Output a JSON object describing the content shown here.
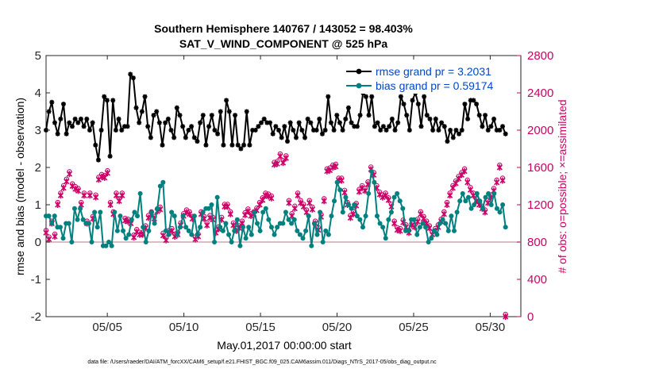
{
  "chart_data": {
    "type": "line",
    "title": "Southern Hemisphere 140767 / 143052 = 98.403%",
    "subtitle": "SAT_V_WIND_COMPONENT @ 525 hPa",
    "xlabel": "May.01,2017 00:00:00 start",
    "ylabel_left": "rmse and bias (model - observation)",
    "ylabel_right": "# of obs: o=possible; ×=assimilated",
    "footnote": "data file: /Users/raeder/DAI/ATM_forcXX/CAM6_setup/f.e21.FHIST_BGC.f09_025.CAM6assim.011/Diags_NTrS_2017-05/obs_diag_output.nc",
    "x_range": [
      1,
      32
    ],
    "ylim_left": [
      -2,
      5
    ],
    "ylim_right": [
      0,
      2800
    ],
    "x_ticks": [
      {
        "value": 5,
        "label": "05/05"
      },
      {
        "value": 10,
        "label": "05/10"
      },
      {
        "value": 15,
        "label": "05/15"
      },
      {
        "value": 20,
        "label": "05/20"
      },
      {
        "value": 25,
        "label": "05/25"
      },
      {
        "value": 30,
        "label": "05/30"
      }
    ],
    "y_left_ticks": [
      {
        "value": -2,
        "label": "-2"
      },
      {
        "value": -1,
        "label": "-1"
      },
      {
        "value": 0,
        "label": "0"
      },
      {
        "value": 1,
        "label": "1"
      },
      {
        "value": 2,
        "label": "2"
      },
      {
        "value": 3,
        "label": "3"
      },
      {
        "value": 4,
        "label": "4"
      },
      {
        "value": 5,
        "label": "5"
      }
    ],
    "y_right_ticks": [
      {
        "value": 0,
        "label": "0"
      },
      {
        "value": 400,
        "label": "400"
      },
      {
        "value": 800,
        "label": "800"
      },
      {
        "value": 1200,
        "label": "1200"
      },
      {
        "value": 1600,
        "label": "1600"
      },
      {
        "value": 2000,
        "label": "2000"
      },
      {
        "value": 2400,
        "label": "2400"
      },
      {
        "value": 2800,
        "label": "2800"
      }
    ],
    "legend": {
      "placement": "top-right",
      "entries": [
        "rmse grand pr = 3.2031",
        "bias grand pr = 0.59174"
      ]
    },
    "colors": {
      "rmse": "#000000",
      "bias": "#00807f",
      "obs": "#cc0066",
      "zero_line": "#c8a8b0",
      "legend_text": "#0047cc"
    },
    "rmse": {
      "name": "rmse grand pr = 3.2031",
      "y": [
        3.0,
        3.5,
        3.75,
        3.2,
        2.9,
        3.3,
        3.7,
        2.9,
        3.2,
        3.1,
        3.3,
        3.2,
        3.3,
        3.1,
        3.3,
        3.0,
        3.2,
        2.6,
        2.2,
        3.0,
        3.9,
        3.8,
        2.3,
        3.8,
        3.0,
        3.3,
        3.0,
        3.1,
        3.1,
        4.5,
        4.4,
        3.6,
        3.2,
        3.5,
        3.9,
        3.1,
        2.8,
        3.4,
        3.5,
        3.2,
        2.6,
        3.2,
        3.3,
        3.0,
        2.8,
        3.6,
        3.4,
        3.1,
        2.8,
        3.0,
        3.1,
        2.8,
        2.7,
        3.2,
        3.4,
        2.6,
        3.1,
        3.4,
        3.0,
        2.9,
        3.5,
        2.6,
        3.8,
        3.5,
        2.6,
        3.4,
        2.6,
        2.5,
        2.6,
        3.5,
        2.6,
        3.0,
        3.0,
        3.1,
        3.2,
        3.3,
        3.2,
        3.2,
        2.9,
        3.1,
        3.0,
        2.8,
        3.1,
        2.7,
        3.2,
        3.0,
        2.8,
        3.2,
        3.0,
        2.8,
        3.3,
        3.2,
        3.0,
        3.0,
        3.3,
        2.9,
        3.0,
        3.9,
        3.2,
        3.0,
        3.4,
        3.2,
        3.0,
        3.3,
        3.6,
        3.2,
        3.1,
        3.1,
        3.4,
        4.0,
        3.9,
        3.4,
        3.9,
        3.1,
        3.2,
        3.0,
        3.1,
        3.0,
        3.1,
        3.3,
        3.0,
        3.2,
        3.9,
        3.7,
        3.4,
        3.0,
        3.8,
        4.0,
        3.7,
        3.1,
        3.9,
        3.4,
        3.3,
        3.0,
        3.3,
        3.0,
        3.2,
        3.1,
        2.7,
        3.0,
        2.8,
        3.0,
        2.9,
        3.0,
        3.7,
        3.3,
        3.8,
        3.8,
        3.7,
        3.4,
        3.1,
        3.4,
        3.0,
        3.1,
        3.3,
        3.0,
        3.0,
        3.1,
        2.9
      ],
      "note_x": "x values are evenly spaced from May 1 to May 31"
    },
    "bias": {
      "name": "bias grand pr = 0.59174",
      "y": [
        0.7,
        0.7,
        0.5,
        0.7,
        0.4,
        0.4,
        0.1,
        0.5,
        0.5,
        0.0,
        0.9,
        0.6,
        0.9,
        0.6,
        0.5,
        0.5,
        0.0,
        0.8,
        0.4,
        0.8,
        -0.1,
        -0.1,
        0.0,
        -0.1,
        0.8,
        0.3,
        0.7,
        0.3,
        0.1,
        0.2,
        0.6,
        0.8,
        0.7,
        1.3,
        0.4,
        0.0,
        0.3,
        0.8,
        0.5,
        0.9,
        1.5,
        1.6,
        0.3,
        0.2,
        0.8,
        0.7,
        0.2,
        0.4,
        0.7,
        0.4,
        0.3,
        0.2,
        0.7,
        0.2,
        0.4,
        0.8,
        0.9,
        0.9,
        1.0,
        0.0,
        1.2,
        0.4,
        0.3,
        0.5,
        0.2,
        0.0,
        0.3,
        0.6,
        -0.1,
        0.4,
        0.1,
        0.4,
        0.2,
        0.8,
        0.5,
        0.3,
        0.8,
        0.9,
        0.6,
        0.4,
        0.2,
        0.4,
        0.5,
        0.5,
        0.8,
        0.6,
        0.5,
        0.6,
        0.3,
        0.2,
        0.1,
        0.3,
        0.7,
        -0.1,
        0.5,
        0.2,
        0.8,
        0.0,
        0.3,
        0.2,
        0.7,
        1.1,
        1.6,
        1.4,
        0.8,
        1.2,
        1.0,
        0.9,
        1.0,
        0.7,
        0.6,
        0.4,
        0.7,
        1.3,
        1.9,
        1.6,
        0.7,
        0.5,
        0.4,
        0.1,
        0.6,
        0.8,
        1.2,
        1.3,
        1.1,
        0.9,
        0.3,
        0.3,
        0.6,
        0.6,
        0.2,
        0.4,
        0.5,
        0.4,
        0.0,
        0.1,
        0.3,
        0.2,
        0.5,
        0.6,
        0.5,
        0.3,
        0.7,
        0.3,
        0.8,
        1.1,
        1.3,
        1.1,
        1.2,
        0.9,
        1.0,
        1.3,
        1.1,
        0.9,
        1.2,
        1.3,
        1.0,
        1.3,
        0.9,
        0.8,
        1.0,
        0.4
      ]
    },
    "obs_assimilated": {
      "y": [
        900,
        830,
        1000,
        860,
        1200,
        1300,
        1380,
        1450,
        1530,
        1400,
        1370,
        1350,
        1200,
        1300,
        1000,
        1300,
        1050,
        1280,
        1470,
        1500,
        1490,
        1540,
        1200,
        1100,
        1300,
        1240,
        1300,
        1030,
        1020,
        1000,
        850,
        910,
        880,
        880,
        950,
        1060,
        1100,
        1050,
        1130,
        1150,
        870,
        820,
        900,
        920,
        860,
        880,
        980,
        1080,
        1120,
        1100,
        1050,
        830,
        860,
        1100,
        1050,
        980,
        1060,
        1040,
        900,
        940,
        1040,
        1180,
        1180,
        1100,
        980,
        920,
        950,
        1000,
        1090,
        1130,
        1080,
        1100,
        1140,
        1200,
        1250,
        1300,
        1290,
        1270,
        1630,
        1640,
        1720,
        1650,
        1700,
        1220,
        1080,
        1160,
        1300,
        1220,
        1180,
        1120,
        1220,
        1150,
        1000,
        930,
        1070,
        1240,
        1560,
        1570,
        1600,
        1610,
        1460,
        1460,
        1330,
        1200,
        1060,
        1100,
        1190,
        1340,
        1380,
        1350,
        1420,
        1580,
        1520,
        1380,
        1310,
        1280,
        1300,
        1250,
        1180,
        1000,
        930,
        920,
        1010,
        960,
        900,
        980,
        960,
        1020,
        1100,
        1050,
        1000,
        950,
        880,
        920,
        960,
        1020,
        1100,
        1200,
        1300,
        1380,
        1430,
        1480,
        1520,
        1560,
        1440,
        1360,
        1300,
        1240,
        1200,
        1160,
        1120,
        1220,
        1280,
        1350,
        1440,
        1600,
        1460,
        0
      ],
      "note": "counts in # of obs (right axis)"
    }
  }
}
